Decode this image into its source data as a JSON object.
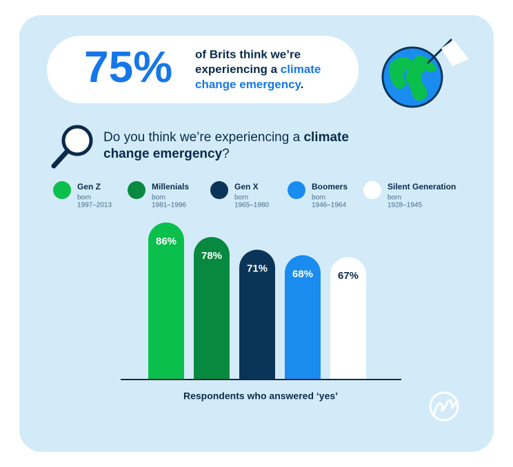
{
  "header": {
    "stat": "75%",
    "line1": "of Brits think we’re",
    "line2_plain": "experiencing a",
    "line2_highlight": "climate",
    "line3_highlight": "change emergency",
    "line3_end": "."
  },
  "question": {
    "line1_plain": "Do you think we’re experiencing a",
    "line1_bold": "climate",
    "line2_bold": "change emergency",
    "line2_end": "?"
  },
  "chart_data": {
    "type": "bar",
    "categories": [
      "Gen Z",
      "Millenials",
      "Gen X",
      "Boomers",
      "Silent Generation"
    ],
    "born_label": "born",
    "born_years": [
      "1997–2013",
      "1981–1996",
      "1965–1980",
      "1946–1964",
      "1928–1945"
    ],
    "values": [
      86,
      78,
      71,
      68,
      67
    ],
    "value_labels": [
      "86%",
      "78%",
      "71%",
      "68%",
      "67%"
    ],
    "colors": [
      "#0bbf4d",
      "#078a3f",
      "#0b3558",
      "#1a8cf0",
      "#ffffff"
    ],
    "x_label": "Respondents who answered ‘yes’"
  }
}
